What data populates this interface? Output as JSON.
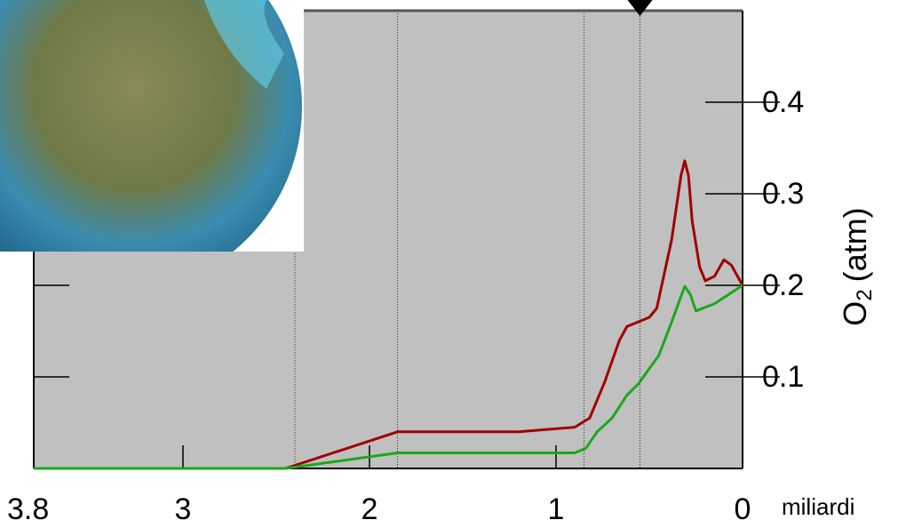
{
  "chart_data": {
    "type": "line",
    "y_label": {
      "text": "O",
      "subscript": "2",
      "suffix": "(atm)"
    },
    "x_label": "miliardi",
    "xlim": [
      3.8,
      0
    ],
    "ylim": [
      0,
      0.5
    ],
    "xticks": [
      3.8,
      3,
      2,
      1,
      0
    ],
    "yticks": [
      0.1,
      0.2,
      0.3,
      0.4
    ],
    "vlines": [
      2.4,
      1.85,
      0.85,
      0.55
    ],
    "marker_x": 0.55,
    "series": [
      {
        "color": "#a00000",
        "x": [
          3.8,
          2.45,
          1.85,
          1.2,
          0.9,
          0.82,
          0.74,
          0.66,
          0.62,
          0.5,
          0.46,
          0.38,
          0.33,
          0.31,
          0.29,
          0.27,
          0.23,
          0.2,
          0.15,
          0.1,
          0.06,
          0
        ],
        "values": [
          0,
          0,
          0.04,
          0.04,
          0.045,
          0.055,
          0.094,
          0.14,
          0.155,
          0.165,
          0.175,
          0.25,
          0.32,
          0.336,
          0.32,
          0.27,
          0.22,
          0.205,
          0.21,
          0.228,
          0.222,
          0.2
        ]
      },
      {
        "color": "#1aa81a",
        "x": [
          3.8,
          2.45,
          1.85,
          0.9,
          0.84,
          0.78,
          0.7,
          0.62,
          0.56,
          0.45,
          0.38,
          0.31,
          0.28,
          0.25,
          0.15,
          0
        ],
        "values": [
          0,
          0,
          0.017,
          0.017,
          0.022,
          0.04,
          0.055,
          0.08,
          0.092,
          0.123,
          0.16,
          0.199,
          0.19,
          0.172,
          0.18,
          0.2
        ]
      }
    ]
  }
}
